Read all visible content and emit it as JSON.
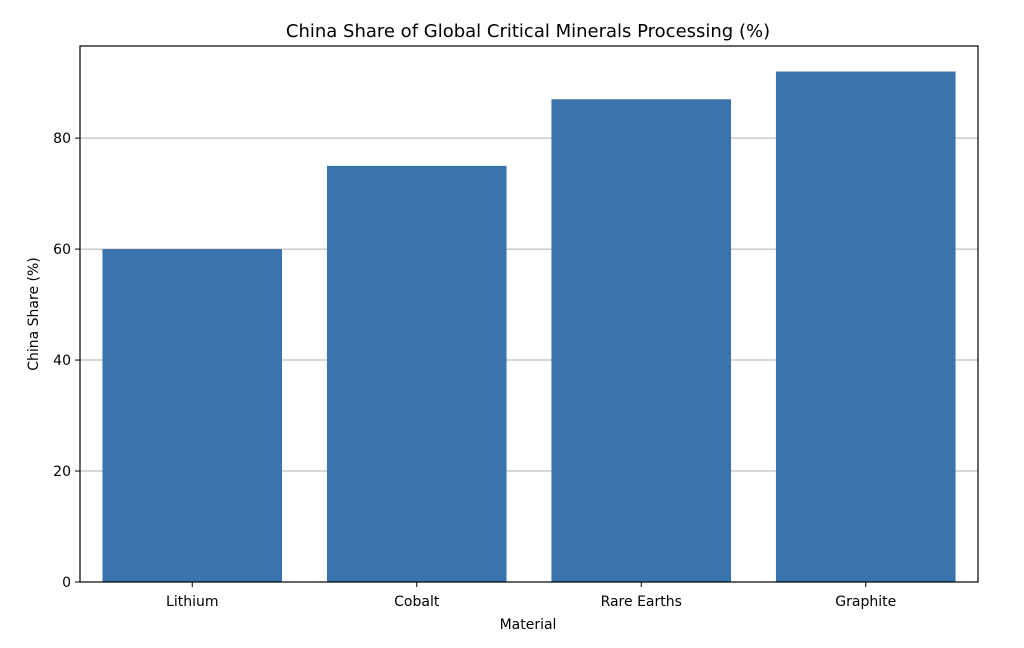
{
  "chart_data": {
    "type": "bar",
    "title": "China Share of Global Critical Minerals Processing (%)",
    "xlabel": "Material",
    "ylabel": "China Share (%)",
    "categories": [
      "Lithium",
      "Cobalt",
      "Rare Earths",
      "Graphite"
    ],
    "values": [
      60,
      75,
      87,
      92
    ],
    "ylim": [
      0,
      96.6
    ],
    "yticks": [
      0,
      20,
      40,
      60,
      80
    ],
    "grid": "y-major",
    "bar_color": "#3a74ad"
  }
}
